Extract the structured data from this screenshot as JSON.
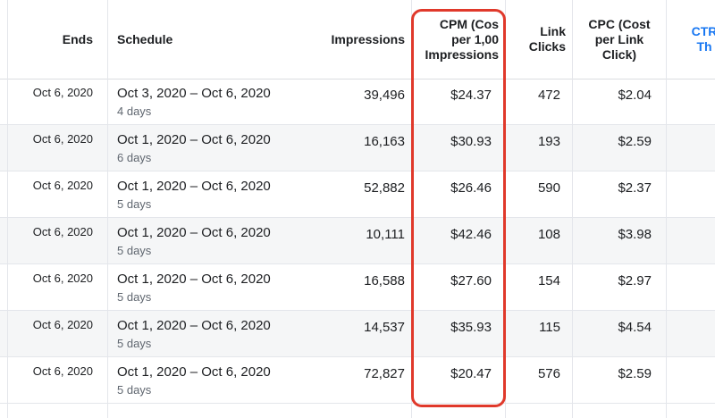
{
  "columns": {
    "ends": "Ends",
    "schedule": "Schedule",
    "impressions": "Impressions",
    "cpm": "CPM (Cos\nper 1,00\nImpressions",
    "link_clicks": "Link\nClicks",
    "cpc": "CPC (Cost\nper Link\nClick)",
    "ctr": "CTR\nTh"
  },
  "rows": [
    {
      "ends": "Oct 6, 2020",
      "range": "Oct 3, 2020 – Oct 6, 2020",
      "days": "4 days",
      "impressions": "39,496",
      "cpm": "$24.37",
      "clicks": "472",
      "cpc": "$2.04"
    },
    {
      "ends": "Oct 6, 2020",
      "range": "Oct 1, 2020 – Oct 6, 2020",
      "days": "6 days",
      "impressions": "16,163",
      "cpm": "$30.93",
      "clicks": "193",
      "cpc": "$2.59"
    },
    {
      "ends": "Oct 6, 2020",
      "range": "Oct 1, 2020 – Oct 6, 2020",
      "days": "5 days",
      "impressions": "52,882",
      "cpm": "$26.46",
      "clicks": "590",
      "cpc": "$2.37"
    },
    {
      "ends": "Oct 6, 2020",
      "range": "Oct 1, 2020 – Oct 6, 2020",
      "days": "5 days",
      "impressions": "10,111",
      "cpm": "$42.46",
      "clicks": "108",
      "cpc": "$3.98"
    },
    {
      "ends": "Oct 6, 2020",
      "range": "Oct 1, 2020 – Oct 6, 2020",
      "days": "5 days",
      "impressions": "16,588",
      "cpm": "$27.60",
      "clicks": "154",
      "cpc": "$2.97"
    },
    {
      "ends": "Oct 6, 2020",
      "range": "Oct 1, 2020 – Oct 6, 2020",
      "days": "5 days",
      "impressions": "14,537",
      "cpm": "$35.93",
      "clicks": "115",
      "cpc": "$4.54"
    },
    {
      "ends": "Oct 6, 2020",
      "range": "Oct 1, 2020 – Oct 6, 2020",
      "days": "5 days",
      "impressions": "72,827",
      "cpm": "$20.47",
      "clicks": "576",
      "cpc": "$2.59"
    }
  ],
  "highlight_color": "#e0392b",
  "link_color": "#1877f2"
}
